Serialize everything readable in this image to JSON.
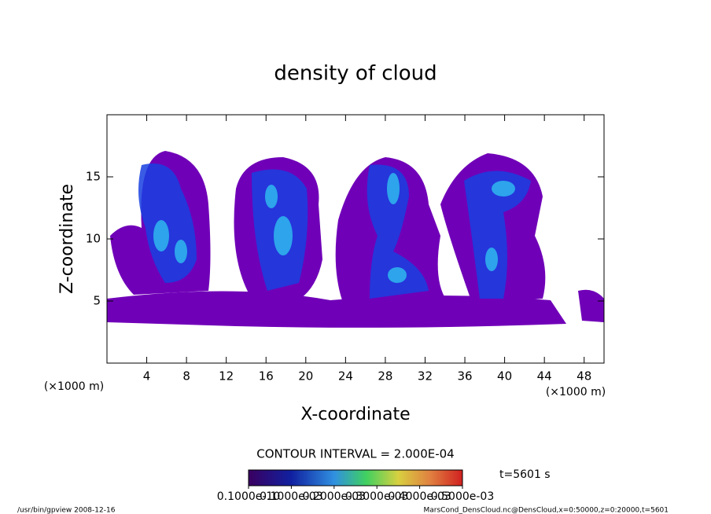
{
  "chart_data": {
    "type": "contour",
    "title": "density of cloud",
    "x_label": "X-coordinate",
    "y_label": "Z-coordinate",
    "x_unit": "(×1000 m)",
    "y_unit": "(×1000 m)",
    "xlim": [
      0,
      50
    ],
    "xticks": [
      4,
      8,
      12,
      16,
      20,
      24,
      28,
      32,
      36,
      40,
      44,
      48
    ],
    "ylim": [
      0,
      20
    ],
    "yticks": [
      5,
      10,
      15
    ],
    "contour_interval": "CONTOUR INTERVAL = 2.000E-04",
    "time_label": "t=5601 s",
    "colorbar_lim": [
      0,
      0.0005
    ],
    "colorbar_ticks": [
      {
        "value": 1e-11,
        "label": "0.1000e-10"
      },
      {
        "value": 0.0001,
        "label": "0.1000e-03"
      },
      {
        "value": 0.0002,
        "label": "0.2000e-03"
      },
      {
        "value": 0.0003,
        "label": "0.3000e-03"
      },
      {
        "value": 0.0004,
        "label": "0.4000e-03"
      },
      {
        "value": 0.0005,
        "label": "0.5000e-03"
      }
    ],
    "footer_left": "/usr/bin/gpview   2008-12-16",
    "footer_right": "MarsCond_DensCloud.nc@DensCloud,x=0:50000,z=0:20000,t=5601"
  }
}
